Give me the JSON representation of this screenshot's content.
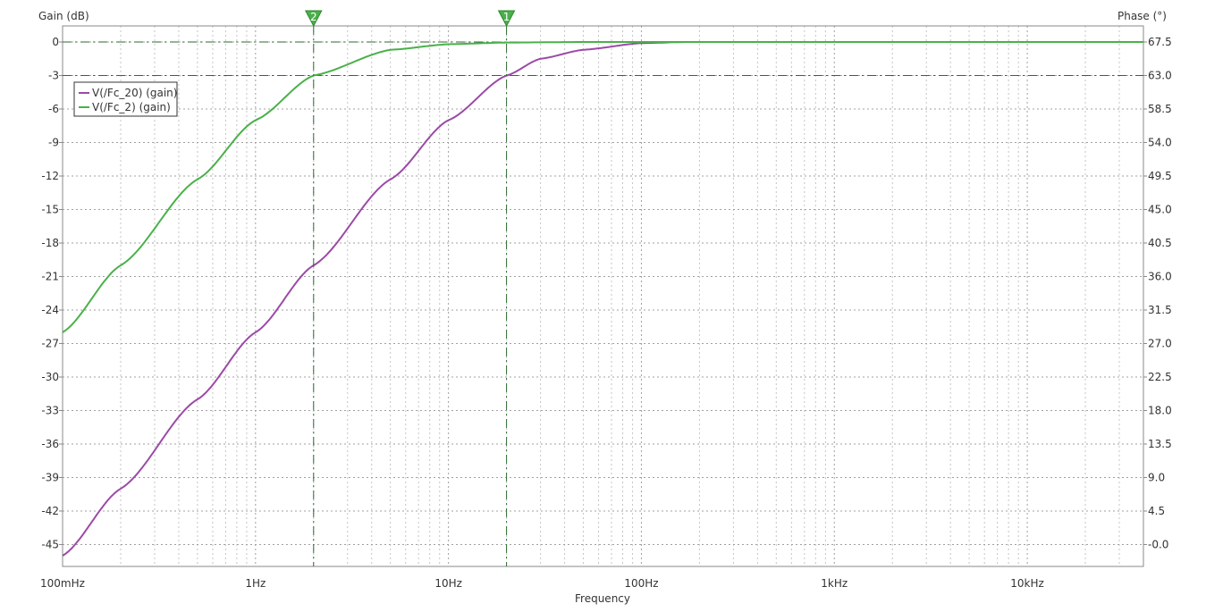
{
  "chart_data": {
    "type": "line",
    "x_scale": "log",
    "xlabel": "Frequency",
    "ylabel_left": "Gain (dB)",
    "ylabel_right": "Phase (°)",
    "xlim": [
      0.1,
      40000
    ],
    "ylim_left": [
      -46.5,
      0
    ],
    "ylim_right": [
      -2,
      68
    ],
    "x_ticks": [
      {
        "v": 0.1,
        "label": "100mHz"
      },
      {
        "v": 1,
        "label": "1Hz"
      },
      {
        "v": 10,
        "label": "10Hz"
      },
      {
        "v": 100,
        "label": "100Hz"
      },
      {
        "v": 1000,
        "label": "1kHz"
      },
      {
        "v": 10000,
        "label": "10kHz"
      }
    ],
    "y_ticks_left": [
      0,
      -3,
      -6,
      -9,
      -12,
      -15,
      -18,
      -21,
      -24,
      -27,
      -30,
      -33,
      -36,
      -39,
      -42,
      -45
    ],
    "y_ticks_right": [
      {
        "v": 67.5,
        "label": "67.5"
      },
      {
        "v": 63.0,
        "label": "63.0"
      },
      {
        "v": 58.5,
        "label": "58.5"
      },
      {
        "v": 54.0,
        "label": "54.0"
      },
      {
        "v": 49.5,
        "label": "49.5"
      },
      {
        "v": 45.0,
        "label": "45.0"
      },
      {
        "v": 40.5,
        "label": "40.5"
      },
      {
        "v": 36.0,
        "label": "36.0"
      },
      {
        "v": 31.5,
        "label": "31.5"
      },
      {
        "v": 27.0,
        "label": "27.0"
      },
      {
        "v": 22.5,
        "label": "22.5"
      },
      {
        "v": 18.0,
        "label": "18.0"
      },
      {
        "v": 13.5,
        "label": "13.5"
      },
      {
        "v": 9.0,
        "label": "9.0"
      },
      {
        "v": 4.5,
        "label": "4.5"
      },
      {
        "v": 0.0,
        "label": "-0.0"
      }
    ],
    "grid": true,
    "legend_position": "top-left",
    "series": [
      {
        "name": "V(/Fc_20) (gain)",
        "color": "#9b4aa6",
        "x": [
          0.1,
          0.2,
          0.5,
          1,
          2,
          5,
          10,
          20,
          30,
          50,
          100,
          170
        ],
        "y": [
          -46.0,
          -40.0,
          -32.0,
          -26.0,
          -20.0,
          -12.3,
          -7.0,
          -3.0,
          -1.5,
          -0.7,
          -0.1,
          0.0
        ]
      },
      {
        "name": "V(/Fc_2) (gain)",
        "color": "#4ab04a",
        "x": [
          0.1,
          0.2,
          0.5,
          1,
          2,
          5,
          10,
          20,
          50,
          100,
          1000,
          10000,
          40000
        ],
        "y": [
          -26.0,
          -20.0,
          -12.3,
          -7.0,
          -3.0,
          -0.7,
          -0.2,
          -0.05,
          0.0,
          0.0,
          0.0,
          0.0,
          0.0
        ]
      }
    ],
    "cursors": [
      {
        "label": "2",
        "x": 2
      },
      {
        "label": "1",
        "x": 20
      }
    ],
    "reference_lines_db": [
      0,
      -3
    ]
  }
}
